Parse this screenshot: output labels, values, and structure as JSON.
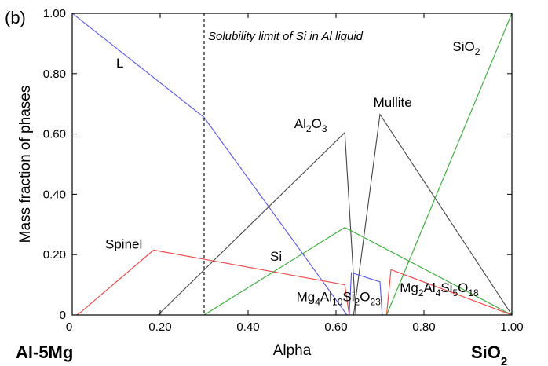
{
  "panel_label": "(b)",
  "chart_data": {
    "type": "line",
    "xlabel": "Alpha",
    "ylabel": "Mass fraction of phases",
    "xlim": [
      0,
      1
    ],
    "ylim": [
      0,
      1
    ],
    "x_end_labels": {
      "left": "Al-5Mg",
      "right": "SiO2"
    },
    "x_ticks": [
      {
        "value": 0,
        "label": "0"
      },
      {
        "value": 0.2,
        "label": "0.20"
      },
      {
        "value": 0.4,
        "label": "0.40"
      },
      {
        "value": 0.6,
        "label": "0.60"
      },
      {
        "value": 0.8,
        "label": "0.80"
      },
      {
        "value": 1.0,
        "label": "1.00"
      }
    ],
    "y_ticks": [
      {
        "value": 0,
        "label": "0"
      },
      {
        "value": 0.2,
        "label": "0.20"
      },
      {
        "value": 0.4,
        "label": "0.40"
      },
      {
        "value": 0.6,
        "label": "0.60"
      },
      {
        "value": 0.8,
        "label": "0.80"
      },
      {
        "value": 1.0,
        "label": "1.00"
      }
    ],
    "vline": {
      "x": 0.3,
      "style": "dashed",
      "text": "Solubility limit of Si in Al liquid"
    },
    "series": [
      {
        "name": "L",
        "color": "#5555ee",
        "points": [
          [
            0,
            1.0
          ],
          [
            0.3,
            0.655
          ],
          [
            0.62,
            0.01
          ],
          [
            0.625,
            0
          ]
        ]
      },
      {
        "name": "Spinel",
        "color": "#ee4444",
        "points": [
          [
            0.01,
            0
          ],
          [
            0.02,
            0.01
          ],
          [
            0.185,
            0.215
          ],
          [
            0.62,
            0.1
          ],
          [
            0.63,
            0
          ]
        ]
      },
      {
        "name": "Al2O3",
        "color": "#444444",
        "points": [
          [
            0.195,
            0
          ],
          [
            0.62,
            0.605
          ],
          [
            0.645,
            0
          ]
        ]
      },
      {
        "name": "Si",
        "color": "#33aa33",
        "points": [
          [
            0.3,
            0
          ],
          [
            0.62,
            0.29
          ],
          [
            1.0,
            0
          ]
        ]
      },
      {
        "name": "Mullite",
        "color": "#444444",
        "points": [
          [
            0.64,
            0
          ],
          [
            0.7,
            0.665
          ],
          [
            1.0,
            0
          ]
        ]
      },
      {
        "name": "Mg4Al10Si2O23",
        "color": "#5555ee",
        "points": [
          [
            0.63,
            0
          ],
          [
            0.635,
            0.14
          ],
          [
            0.7,
            0.11
          ],
          [
            0.705,
            0
          ]
        ]
      },
      {
        "name": "Mg2Al4Si5O18",
        "color": "#ee4444",
        "points": [
          [
            0.715,
            0
          ],
          [
            0.725,
            0.15
          ],
          [
            1.0,
            0
          ]
        ]
      },
      {
        "name": "SiO2",
        "color": "#33aa33",
        "points": [
          [
            0.715,
            0
          ],
          [
            1.0,
            1.0
          ]
        ]
      }
    ],
    "annotations": [
      {
        "parts": [
          [
            "L",
            ""
          ]
        ],
        "x": 0.1,
        "y": 0.82
      },
      {
        "parts": [
          [
            "Spinel",
            ""
          ]
        ],
        "x": 0.075,
        "y": 0.22
      },
      {
        "parts": [
          [
            "Al",
            ""
          ],
          [
            "2",
            "sub"
          ],
          [
            "O",
            ""
          ],
          [
            "3",
            "sub"
          ]
        ],
        "x": 0.505,
        "y": 0.62
      },
      {
        "parts": [
          [
            "Si",
            ""
          ]
        ],
        "x": 0.45,
        "y": 0.18
      },
      {
        "parts": [
          [
            "Mullite",
            ""
          ]
        ],
        "x": 0.685,
        "y": 0.69
      },
      {
        "parts": [
          [
            "Mg",
            ""
          ],
          [
            "4",
            "sub"
          ],
          [
            "Al",
            ""
          ],
          [
            "10",
            "sub"
          ],
          [
            "Si",
            ""
          ],
          [
            "2",
            "sub"
          ],
          [
            "O",
            ""
          ],
          [
            "23",
            "sub"
          ]
        ],
        "x": 0.51,
        "y": 0.045
      },
      {
        "parts": [
          [
            "Mg",
            ""
          ],
          [
            "2",
            "sub"
          ],
          [
            "Al",
            ""
          ],
          [
            "4",
            "sub"
          ],
          [
            "Si",
            ""
          ],
          [
            "5",
            "sub"
          ],
          [
            "O",
            ""
          ],
          [
            "18",
            "sub"
          ]
        ],
        "x": 0.745,
        "y": 0.075
      },
      {
        "parts": [
          [
            "SiO",
            ""
          ],
          [
            "2",
            "sub"
          ]
        ],
        "x": 0.865,
        "y": 0.875
      }
    ]
  }
}
